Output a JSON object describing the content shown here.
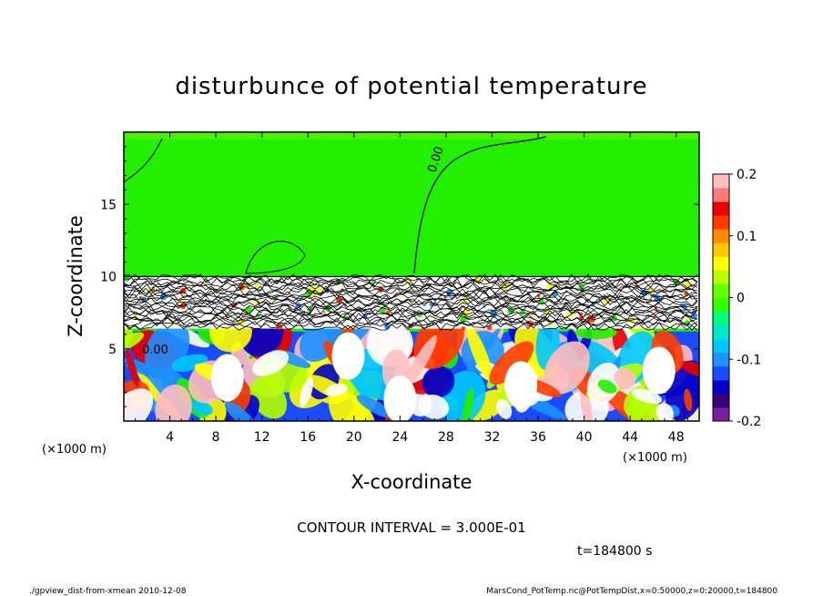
{
  "chart_data": {
    "type": "heatmap",
    "title": "disturbunce of potential temperature",
    "xlabel": "X-coordinate",
    "ylabel": "Z-coordinate",
    "x_unit_left": "(×1000 m)",
    "x_unit_right": "(×1000 m)",
    "xlim": [
      0,
      50
    ],
    "ylim": [
      0,
      20
    ],
    "x_ticks": [
      4,
      8,
      12,
      16,
      20,
      24,
      28,
      32,
      36,
      40,
      44,
      48
    ],
    "y_ticks": [
      5,
      10,
      15
    ],
    "colorbar": {
      "range": [
        -0.2,
        0.2
      ],
      "ticks": [
        "0.2",
        "0.1",
        "0",
        "-0.1",
        "-0.2"
      ],
      "tick_values": [
        0.2,
        0.1,
        0,
        -0.1,
        -0.2
      ],
      "colors": [
        "#7a1fa2",
        "#3a007a",
        "#0000c8",
        "#1a4cff",
        "#1e90ff",
        "#00c8ff",
        "#00e8c8",
        "#00ff80",
        "#33ff00",
        "#66ff00",
        "#b4ff00",
        "#ffff00",
        "#ffc800",
        "#ff8c00",
        "#ff3c00",
        "#e60000",
        "#ff7878",
        "#ffbebe"
      ]
    },
    "contour_label": "0.00",
    "contour_interval_text": "CONTOUR INTERVAL = 3.000E-01",
    "time_text": "t=184800 s"
  },
  "footer": {
    "left": "./gpview_dist-from-xmean  2010-12-08",
    "right": "MarsCond_PotTemp.nc@PotTempDist,x=0:50000,z=0:20000,t=184800"
  }
}
